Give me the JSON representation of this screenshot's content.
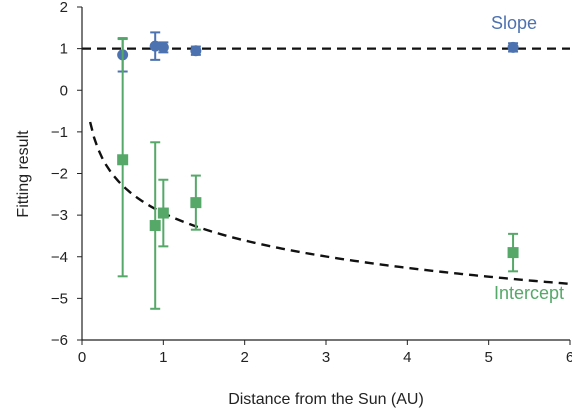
{
  "chart_data": {
    "type": "scatter",
    "xlabel": "Distance from the Sun (AU)",
    "ylabel": "Fitting result",
    "xlim": [
      0,
      6
    ],
    "ylim": [
      -6,
      2
    ],
    "xticks": [
      0,
      1,
      2,
      3,
      4,
      5,
      6
    ],
    "yticks": [
      2,
      1,
      0,
      -1,
      -2,
      -3,
      -4,
      -5,
      -6
    ],
    "ytick_labels": [
      "2",
      "1",
      "0",
      "−1",
      "−2",
      "−3",
      "−4",
      "−5",
      "−6"
    ],
    "grid": false,
    "reference_line": {
      "y": 1,
      "style": "dashed",
      "color": "#111111"
    },
    "fit_curve": {
      "style": "dashed",
      "color": "#111111",
      "formula": "y = -2.95 - 0.95*log(x)",
      "x_range": [
        0.1,
        6
      ]
    },
    "series": [
      {
        "name": "Slope",
        "marker": "circle",
        "color": "#4c72b0",
        "points": [
          {
            "x": 0.5,
            "y": 0.85,
            "err_low": 0.4,
            "err_high": 0.4
          },
          {
            "x": 0.9,
            "y": 1.06,
            "err_low": 0.33,
            "err_high": 0.33
          },
          {
            "x": 1.0,
            "y": 1.03,
            "err_low": 0.12,
            "err_high": 0.12
          },
          {
            "x": 1.4,
            "y": 0.95,
            "err_low": 0.1,
            "err_high": 0.1
          },
          {
            "x": 5.3,
            "y": 1.03,
            "err_low": 0.1,
            "err_high": 0.1
          }
        ]
      },
      {
        "name": "Intercept",
        "marker": "square",
        "color": "#55a868",
        "points": [
          {
            "x": 0.5,
            "y": -1.67,
            "err_low": 2.8,
            "err_high": 2.9
          },
          {
            "x": 0.9,
            "y": -3.25,
            "err_low": 2.0,
            "err_high": 2.0
          },
          {
            "x": 1.0,
            "y": -2.95,
            "err_low": 0.8,
            "err_high": 0.8
          },
          {
            "x": 1.4,
            "y": -2.7,
            "err_low": 0.65,
            "err_high": 0.65
          },
          {
            "x": 5.3,
            "y": -3.9,
            "err_low": 0.45,
            "err_high": 0.45
          }
        ]
      }
    ]
  }
}
